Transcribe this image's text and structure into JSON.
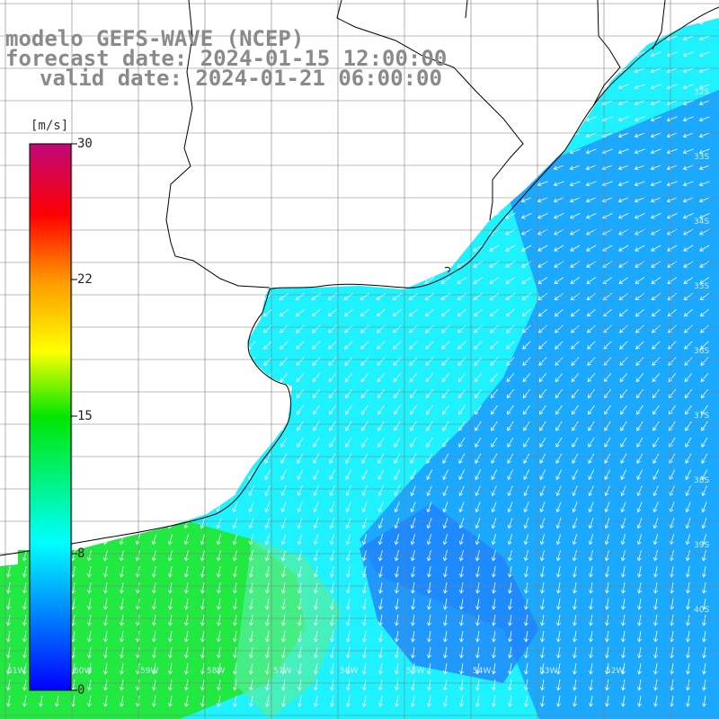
{
  "title": {
    "line1": "modelo GEFS-WAVE (NCEP)",
    "line2": "forecast date: 2024-01-15 12:00:00",
    "line3": "valid date: 2024-01-21 06:00:00"
  },
  "colorbar": {
    "unit": "[m/s]",
    "min": 0,
    "max": 30,
    "ticks": [
      "30",
      "22",
      "15",
      "8",
      "0"
    ]
  },
  "map": {
    "lon_labels": [
      "61W",
      "60W",
      "59W",
      "58W",
      "57W",
      "56W",
      "55W",
      "54W",
      "53W",
      "52W"
    ],
    "lat_labels": [
      "32S",
      "33S",
      "34S",
      "35S",
      "36S",
      "37S",
      "38S",
      "39S",
      "40S"
    ],
    "colors": {
      "sea_cyan": "#1ef2ff",
      "sea_blue": "#1a9cff",
      "sea_green": "#22e820",
      "land": "#ffffff",
      "grid": "#7f7f7f",
      "arrow": "#ffffff"
    }
  }
}
